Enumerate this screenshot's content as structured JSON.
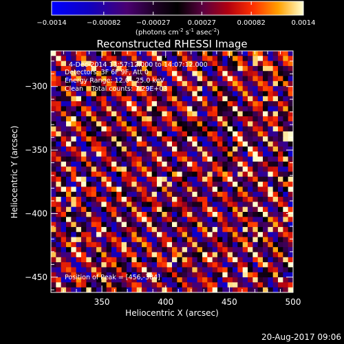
{
  "chart_data": {
    "type": "heatmap",
    "title": "Reconstructed RHESSI Image",
    "xlabel": "Heliocentric X (arcsec)",
    "ylabel": "Heliocentric Y (arcsec)",
    "x_ticks": [
      "350",
      "400",
      "450",
      "500"
    ],
    "y_ticks": [
      "-300",
      "-350",
      "-400",
      "-450"
    ],
    "x_tick_values": [
      350,
      400,
      450,
      500
    ],
    "y_tick_values": [
      -300,
      -350,
      -400,
      -450
    ],
    "xlim": [
      310,
      500
    ],
    "ylim": [
      -462,
      -272
    ],
    "colorbar": {
      "range": [
        -0.0014,
        0.0014
      ],
      "tick_labels": [
        "-0.0014",
        "-0.00082",
        "-0.00027",
        "0.00027",
        "0.00082",
        "0.0014"
      ],
      "unit_label_parts": {
        "part1": "(photons cm",
        "sup1": "-2",
        "part2": " s",
        "sup2": "-1",
        "part3": " asec",
        "sup3": "-2",
        "part4": ")"
      }
    },
    "annotations": [
      "4-Dec-2014 13:57:12.000 to 14:07:12.000",
      "Detectors: 3F 6F 9F, Att 0",
      "Energy Range: 12.0 - 25.0 keV",
      "Clean    Total counts: 7.29E+03"
    ],
    "peak_text": "Position of Peak = [456,-384]",
    "peak_position": [
      456,
      -384
    ],
    "pattern": {
      "grid_cells": 48,
      "stripe_direction": "diagonal top-left to bottom-right",
      "stripe_period_cells": 5
    }
  },
  "footer": {
    "timestamp": "20-Aug-2017 09:06"
  }
}
